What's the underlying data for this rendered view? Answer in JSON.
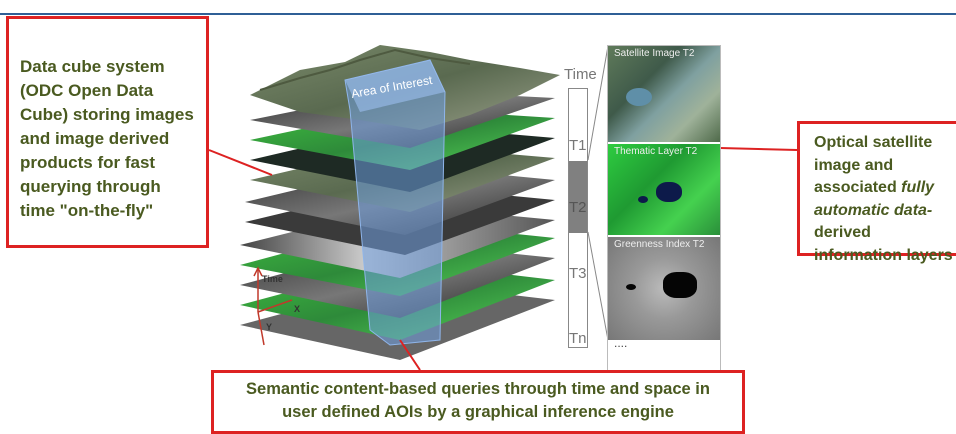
{
  "left_callout": {
    "text": "Data cube system (ODC Open Data Cube) storing images and image derived products for fast querying through time \"on-the-fly\""
  },
  "right_callout": {
    "line1": "Optical satellite image and associated ",
    "italic": "fully automatic data-",
    "line2": "derived information layers"
  },
  "bottom_callout": {
    "line1": "Semantic content-based queries through time and space in",
    "line2": "user defined AOIs by a graphical inference engine"
  },
  "cube": {
    "aoi_label": "Area of Interest",
    "axes": {
      "time": "Time",
      "x": "X",
      "y": "Y"
    }
  },
  "time_axis": {
    "title": "Time",
    "ticks": [
      "T1",
      "T2",
      "T3",
      "Tn"
    ]
  },
  "panels": [
    {
      "title": "Satellite Image T2"
    },
    {
      "title": "Thematic Layer T2"
    },
    {
      "title": "Greenness Index T2"
    }
  ],
  "panel_more": "....",
  "colors": {
    "callout_border": "#dd2222",
    "callout_text": "#4a5a20",
    "aoi_blue": "#6f9ee0"
  }
}
